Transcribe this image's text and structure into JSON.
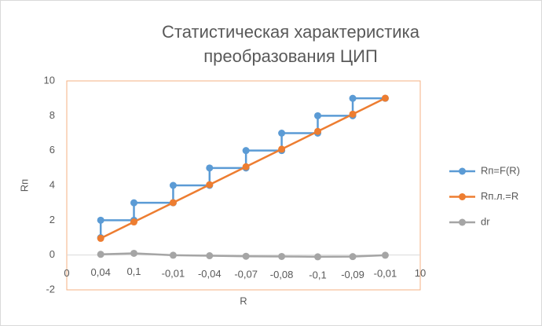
{
  "chart_data": {
    "type": "scatter",
    "title": [
      "Статистическая характеристика",
      "преобразования ЦИП"
    ],
    "x_label": "R",
    "y_label": "Rп",
    "xlim": [
      0,
      10
    ],
    "xticks": [
      0,
      10
    ],
    "ylim": [
      -2,
      10
    ],
    "yticks": [
      -2,
      0,
      2,
      4,
      6,
      8,
      10
    ],
    "grid": false,
    "legend": "right",
    "series": [
      {
        "name": "Rп=F(R)",
        "color": "#5b9bd5",
        "x": [
          0.96,
          0.96,
          1.9,
          1.9,
          3.01,
          3.01,
          4.04,
          4.04,
          5.07,
          5.07,
          6.08,
          6.08,
          7.1,
          7.1,
          8.09,
          8.09,
          9.01
        ],
        "y": [
          1,
          2,
          2,
          3,
          3,
          4,
          4,
          5,
          5,
          6,
          6,
          7,
          7,
          8,
          8,
          9,
          9
        ]
      },
      {
        "name": "Rп.л.=R",
        "color": "#ed7d31",
        "x": [
          0.96,
          1.9,
          3.01,
          4.04,
          5.07,
          6.08,
          7.1,
          8.09,
          9.01
        ],
        "y": [
          0.96,
          1.9,
          3.01,
          4.04,
          5.07,
          6.08,
          7.1,
          8.09,
          9.01
        ]
      },
      {
        "name": "dr",
        "color": "#a5a5a5",
        "x": [
          0.96,
          1.9,
          3.01,
          4.04,
          5.07,
          6.08,
          7.1,
          8.09,
          9.01
        ],
        "y": [
          0.04,
          0.1,
          -0.01,
          -0.04,
          -0.07,
          -0.08,
          -0.1,
          -0.09,
          -0.01
        ],
        "value_labels": [
          "0,04",
          "0,1",
          "-0,01",
          "-0,04",
          "-0,07",
          "-0,08",
          "-0,1",
          "-0,09",
          "-0,01"
        ]
      }
    ]
  }
}
